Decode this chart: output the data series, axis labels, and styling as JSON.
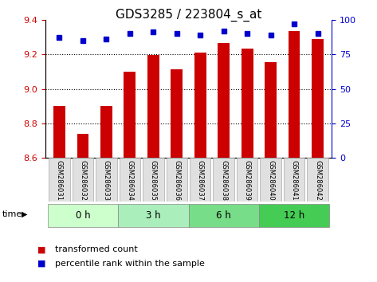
{
  "title": "GDS3285 / 223804_s_at",
  "samples": [
    "GSM286031",
    "GSM286032",
    "GSM286033",
    "GSM286034",
    "GSM286035",
    "GSM286036",
    "GSM286037",
    "GSM286038",
    "GSM286039",
    "GSM286040",
    "GSM286041",
    "GSM286042"
  ],
  "bar_values": [
    8.9,
    8.74,
    8.9,
    9.1,
    9.195,
    9.115,
    9.21,
    9.265,
    9.235,
    9.155,
    9.335,
    9.29
  ],
  "percentile_values": [
    87,
    85,
    86,
    90,
    91,
    90,
    89,
    92,
    90,
    89,
    97,
    90
  ],
  "ylim": [
    8.6,
    9.4
  ],
  "yticks": [
    8.6,
    8.8,
    9.0,
    9.2,
    9.4
  ],
  "right_yticks": [
    0,
    25,
    50,
    75,
    100
  ],
  "bar_color": "#cc0000",
  "dot_color": "#0000cc",
  "bar_bottom": 8.6,
  "percentile_max": 100,
  "group_starts": [
    0,
    3,
    6,
    9
  ],
  "group_ends": [
    3,
    6,
    9,
    12
  ],
  "group_labels": [
    "0 h",
    "3 h",
    "6 h",
    "12 h"
  ],
  "group_colors": [
    "#ccffcc",
    "#aaeebb",
    "#77dd88",
    "#44cc55"
  ],
  "xlabel_color": "#cc0000",
  "right_axis_color": "#0000cc",
  "title_fontsize": 11,
  "tick_fontsize": 8,
  "legend_fontsize": 8,
  "sample_box_color": "#e0e0e0"
}
